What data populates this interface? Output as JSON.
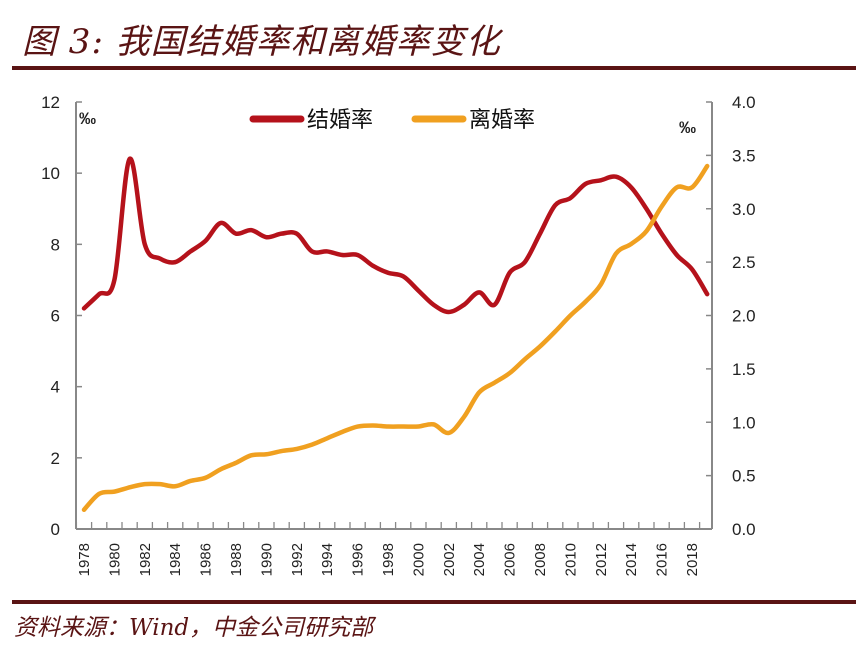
{
  "header": {
    "title": "图 3:  我国结婚率和离婚率变化"
  },
  "footer": {
    "source": "资料来源：Wind，中金公司研究部"
  },
  "colors": {
    "marriage": "#b5121b",
    "divorce": "#f0a020",
    "brand": "#5a1414",
    "axis": "#888888"
  },
  "chart_data": {
    "type": "line",
    "title": "我国结婚率和离婚率变化",
    "x": [
      1978,
      1979,
      1980,
      1981,
      1982,
      1983,
      1984,
      1985,
      1986,
      1987,
      1988,
      1989,
      1990,
      1991,
      1992,
      1993,
      1994,
      1995,
      1996,
      1997,
      1998,
      1999,
      2000,
      2001,
      2002,
      2003,
      2004,
      2005,
      2006,
      2007,
      2008,
      2009,
      2010,
      2011,
      2012,
      2013,
      2014,
      2015,
      2016,
      2017,
      2018,
      2019
    ],
    "x_tick_labels": [
      "1978",
      "1980",
      "1982",
      "1984",
      "1986",
      "1988",
      "1990",
      "1992",
      "1994",
      "1996",
      "1998",
      "2000",
      "2002",
      "2004",
      "2006",
      "2008",
      "2010",
      "2012",
      "2014",
      "2016",
      "2018"
    ],
    "y_left": {
      "label": "‰",
      "ylim": [
        0,
        12
      ],
      "ticks": [
        "0",
        "2",
        "4",
        "6",
        "8",
        "10",
        "12"
      ]
    },
    "y_right": {
      "label": "‰",
      "ylim": [
        0,
        4
      ],
      "ticks": [
        "0.0",
        "0.5",
        "1.0",
        "1.5",
        "2.0",
        "2.5",
        "3.0",
        "3.5",
        "4.0"
      ]
    },
    "legend": {
      "placement": "top-center"
    },
    "series": [
      {
        "name": "结婚率",
        "axis": "left",
        "values": [
          6.2,
          6.6,
          7.0,
          10.4,
          8.0,
          7.6,
          7.5,
          7.8,
          8.1,
          8.6,
          8.3,
          8.4,
          8.2,
          8.3,
          8.3,
          7.8,
          7.8,
          7.7,
          7.7,
          7.4,
          7.2,
          7.1,
          6.7,
          6.3,
          6.1,
          6.3,
          6.65,
          6.3,
          7.2,
          7.5,
          8.3,
          9.1,
          9.3,
          9.7,
          9.8,
          9.9,
          9.6,
          9.0,
          8.3,
          7.7,
          7.3,
          6.6
        ]
      },
      {
        "name": "离婚率",
        "axis": "right",
        "values": [
          0.18,
          0.33,
          0.35,
          0.39,
          0.42,
          0.42,
          0.4,
          0.45,
          0.48,
          0.56,
          0.62,
          0.69,
          0.7,
          0.73,
          0.75,
          0.79,
          0.85,
          0.91,
          0.96,
          0.97,
          0.96,
          0.96,
          0.96,
          0.98,
          0.9,
          1.05,
          1.28,
          1.37,
          1.46,
          1.59,
          1.71,
          1.85,
          2.0,
          2.13,
          2.29,
          2.58,
          2.67,
          2.79,
          3.02,
          3.2,
          3.2,
          3.4
        ]
      }
    ]
  }
}
